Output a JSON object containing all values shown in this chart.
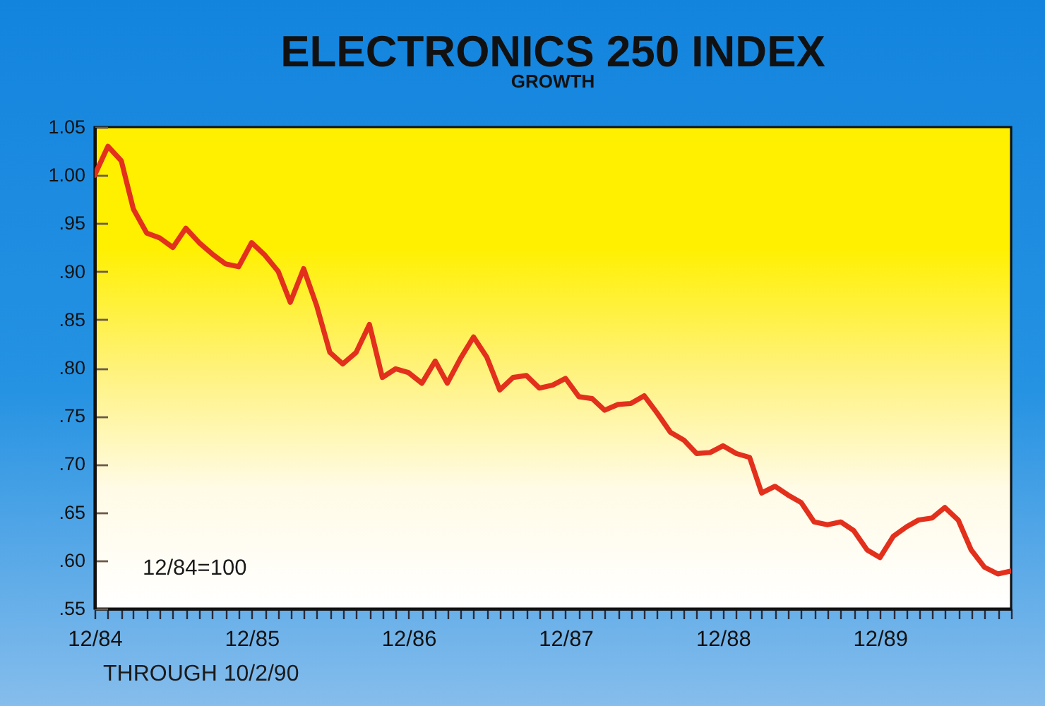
{
  "chart_data": {
    "type": "line",
    "title": "ELECTRONICS 250 INDEX",
    "subtitle": "GROWTH",
    "annotations": [
      "12/84=100",
      "THROUGH 10/2/90"
    ],
    "x": [
      "1984-12",
      "1985-01",
      "1985-02",
      "1985-03",
      "1985-04",
      "1985-05",
      "1985-06",
      "1985-07",
      "1985-08",
      "1985-09",
      "1985-10",
      "1985-11",
      "1985-12",
      "1986-01",
      "1986-02",
      "1986-03",
      "1986-04",
      "1986-05",
      "1986-06",
      "1986-07",
      "1986-08",
      "1986-09",
      "1986-10",
      "1986-11",
      "1986-12",
      "1987-01",
      "1987-02",
      "1987-03",
      "1987-04",
      "1987-05",
      "1987-06",
      "1987-07",
      "1987-08",
      "1987-09",
      "1987-10",
      "1987-11",
      "1987-12",
      "1988-01",
      "1988-02",
      "1988-03",
      "1988-04",
      "1988-05",
      "1988-06",
      "1988-07",
      "1988-08",
      "1988-09",
      "1988-10",
      "1988-11",
      "1988-12",
      "1989-01",
      "1989-02",
      "1989-03",
      "1989-04",
      "1989-05",
      "1989-06",
      "1989-07",
      "1989-08",
      "1989-09",
      "1989-10",
      "1989-11",
      "1989-12",
      "1990-01",
      "1990-02",
      "1990-03",
      "1990-04",
      "1990-05",
      "1990-06",
      "1990-07",
      "1990-08",
      "1990-09",
      "1990-10-02"
    ],
    "series": [
      {
        "color": "#e3301c",
        "values": [
          1.0,
          1.03,
          1.015,
          0.965,
          0.94,
          0.935,
          0.925,
          0.945,
          0.93,
          0.918,
          0.908,
          0.905,
          0.93,
          0.917,
          0.9,
          0.868,
          0.903,
          0.865,
          0.816,
          0.804,
          0.816,
          0.845,
          0.79,
          0.799,
          0.795,
          0.784,
          0.807,
          0.784,
          0.81,
          0.832,
          0.811,
          0.777,
          0.79,
          0.792,
          0.779,
          0.782,
          0.789,
          0.77,
          0.768,
          0.756,
          0.762,
          0.763,
          0.771,
          0.753,
          0.733,
          0.725,
          0.711,
          0.712,
          0.719,
          0.711,
          0.707,
          0.67,
          0.677,
          0.668,
          0.66,
          0.64,
          0.637,
          0.64,
          0.631,
          0.611,
          0.603,
          0.625,
          0.635,
          0.642,
          0.644,
          0.655,
          0.642,
          0.611,
          0.593,
          0.586,
          0.589
        ]
      }
    ],
    "xlim": [
      "1984-12",
      "1990-10-02"
    ],
    "ylim": [
      0.55,
      1.05
    ],
    "xticks": [
      {
        "value": "1984-12",
        "label": "12/84"
      },
      {
        "value": "1985-01",
        "label": null
      },
      {
        "value": "1985-02",
        "label": null
      },
      {
        "value": "1985-03",
        "label": null
      },
      {
        "value": "1985-04",
        "label": null
      },
      {
        "value": "1985-05",
        "label": null
      },
      {
        "value": "1985-06",
        "label": null
      },
      {
        "value": "1985-07",
        "label": null
      },
      {
        "value": "1985-08",
        "label": null
      },
      {
        "value": "1985-09",
        "label": null
      },
      {
        "value": "1985-10",
        "label": null
      },
      {
        "value": "1985-11",
        "label": null
      },
      {
        "value": "1985-12",
        "label": "12/85"
      },
      {
        "value": "1986-01",
        "label": null
      },
      {
        "value": "1986-02",
        "label": null
      },
      {
        "value": "1986-03",
        "label": null
      },
      {
        "value": "1986-04",
        "label": null
      },
      {
        "value": "1986-05",
        "label": null
      },
      {
        "value": "1986-06",
        "label": null
      },
      {
        "value": "1986-07",
        "label": null
      },
      {
        "value": "1986-08",
        "label": null
      },
      {
        "value": "1986-09",
        "label": null
      },
      {
        "value": "1986-10",
        "label": null
      },
      {
        "value": "1986-11",
        "label": null
      },
      {
        "value": "1986-12",
        "label": "12/86"
      },
      {
        "value": "1987-01",
        "label": null
      },
      {
        "value": "1987-02",
        "label": null
      },
      {
        "value": "1987-03",
        "label": null
      },
      {
        "value": "1987-04",
        "label": null
      },
      {
        "value": "1987-05",
        "label": null
      },
      {
        "value": "1987-06",
        "label": null
      },
      {
        "value": "1987-07",
        "label": null
      },
      {
        "value": "1987-08",
        "label": null
      },
      {
        "value": "1987-09",
        "label": null
      },
      {
        "value": "1987-10",
        "label": null
      },
      {
        "value": "1987-11",
        "label": null
      },
      {
        "value": "1987-12",
        "label": "12/87"
      },
      {
        "value": "1988-01",
        "label": null
      },
      {
        "value": "1988-02",
        "label": null
      },
      {
        "value": "1988-03",
        "label": null
      },
      {
        "value": "1988-04",
        "label": null
      },
      {
        "value": "1988-05",
        "label": null
      },
      {
        "value": "1988-06",
        "label": null
      },
      {
        "value": "1988-07",
        "label": null
      },
      {
        "value": "1988-08",
        "label": null
      },
      {
        "value": "1988-09",
        "label": null
      },
      {
        "value": "1988-10",
        "label": null
      },
      {
        "value": "1988-11",
        "label": null
      },
      {
        "value": "1988-12",
        "label": "12/88"
      },
      {
        "value": "1989-01",
        "label": null
      },
      {
        "value": "1989-02",
        "label": null
      },
      {
        "value": "1989-03",
        "label": null
      },
      {
        "value": "1989-04",
        "label": null
      },
      {
        "value": "1989-05",
        "label": null
      },
      {
        "value": "1989-06",
        "label": null
      },
      {
        "value": "1989-07",
        "label": null
      },
      {
        "value": "1989-08",
        "label": null
      },
      {
        "value": "1989-09",
        "label": null
      },
      {
        "value": "1989-10",
        "label": null
      },
      {
        "value": "1989-11",
        "label": null
      },
      {
        "value": "1989-12",
        "label": "12/89"
      },
      {
        "value": "1990-01",
        "label": null
      },
      {
        "value": "1990-02",
        "label": null
      },
      {
        "value": "1990-03",
        "label": null
      },
      {
        "value": "1990-04",
        "label": null
      },
      {
        "value": "1990-05",
        "label": null
      },
      {
        "value": "1990-06",
        "label": null
      },
      {
        "value": "1990-07",
        "label": null
      },
      {
        "value": "1990-08",
        "label": null
      },
      {
        "value": "1990-09",
        "label": null
      },
      {
        "value": "1990-10",
        "label": null
      }
    ],
    "yticks": [
      {
        "value": 0.55,
        "label": ".55"
      },
      {
        "value": 0.6,
        "label": ".60"
      },
      {
        "value": 0.65,
        "label": ".65"
      },
      {
        "value": 0.7,
        "label": ".70"
      },
      {
        "value": 0.75,
        "label": ".75"
      },
      {
        "value": 0.8,
        "label": ".80"
      },
      {
        "value": 0.85,
        "label": ".85"
      },
      {
        "value": 0.9,
        "label": ".90"
      },
      {
        "value": 0.95,
        "label": ".95"
      },
      {
        "value": 1,
        "label": "1.00"
      },
      1.05
    ]
  }
}
